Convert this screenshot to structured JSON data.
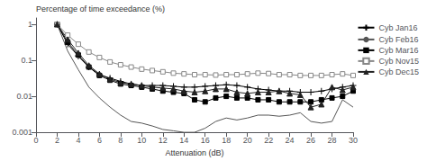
{
  "chart_data": {
    "type": "line",
    "xlabel": "Attenuation (dB)",
    "ylabel": "Percentage of time exceedance (%)",
    "x": [
      2,
      3,
      4,
      5,
      6,
      7,
      8,
      9,
      10,
      11,
      12,
      13,
      14,
      15,
      16,
      17,
      18,
      19,
      20,
      21,
      22,
      23,
      24,
      25,
      26,
      27,
      28,
      29,
      30
    ],
    "series": [
      {
        "name": "Cyb Jan16",
        "color": "#000000",
        "marker": "plus",
        "line_style": "solid",
        "values": [
          1.0,
          0.28,
          0.13,
          0.065,
          0.04,
          0.032,
          0.026,
          0.022,
          0.02,
          0.02,
          0.02,
          0.019,
          0.018,
          0.018,
          0.019,
          0.02,
          0.021,
          0.02,
          0.018,
          0.016,
          0.015,
          0.014,
          0.014,
          0.013,
          0.013,
          0.014,
          0.016,
          0.018,
          0.02
        ]
      },
      {
        "name": "Cyb Feb16",
        "color": "#555555",
        "marker": "none",
        "line_style": "solid",
        "values": [
          1.0,
          0.18,
          0.055,
          0.018,
          0.009,
          0.005,
          0.003,
          0.002,
          0.0018,
          0.0015,
          0.0012,
          0.0011,
          0.001,
          0.001,
          0.0013,
          0.002,
          0.0025,
          0.0022,
          0.0025,
          0.003,
          0.003,
          0.0028,
          0.003,
          0.0035,
          0.002,
          0.0018,
          0.002,
          0.008,
          0.005
        ]
      },
      {
        "name": "Cyb Mar16",
        "color": "#000000",
        "marker": "square",
        "line_style": "solid",
        "values": [
          1.0,
          0.32,
          0.14,
          0.065,
          0.038,
          0.028,
          0.022,
          0.02,
          0.018,
          0.016,
          0.014,
          0.013,
          0.012,
          0.008,
          0.007,
          0.009,
          0.01,
          0.009,
          0.009,
          0.008,
          0.008,
          0.007,
          0.007,
          0.007,
          0.007,
          0.008,
          0.009,
          0.01,
          0.014
        ]
      },
      {
        "name": "Cyb Nov15",
        "color": "#888888",
        "marker": "open_square",
        "line_style": "solid",
        "values": [
          1.0,
          0.5,
          0.28,
          0.17,
          0.12,
          0.09,
          0.075,
          0.065,
          0.057,
          0.052,
          0.048,
          0.044,
          0.042,
          0.04,
          0.04,
          0.039,
          0.04,
          0.04,
          0.042,
          0.044,
          0.043,
          0.04,
          0.04,
          0.038,
          0.038,
          0.038,
          0.04,
          0.042,
          0.038
        ]
      },
      {
        "name": "Cyb Dec15",
        "color": "#222222",
        "marker": "triangle",
        "line_style": "solid",
        "values": [
          1.0,
          0.38,
          0.16,
          0.072,
          0.042,
          0.03,
          0.024,
          0.022,
          0.02,
          0.018,
          0.017,
          0.016,
          0.014,
          0.013,
          0.014,
          0.016,
          0.016,
          0.013,
          0.012,
          0.013,
          0.013,
          0.014,
          0.012,
          0.011,
          0.005,
          0.006,
          0.018,
          0.015,
          0.018
        ]
      }
    ],
    "xlim": [
      0,
      30
    ],
    "xticks": [
      0,
      2,
      4,
      6,
      8,
      10,
      12,
      14,
      16,
      18,
      20,
      22,
      24,
      26,
      28,
      30
    ],
    "ylim": [
      0.001,
      1.5
    ],
    "yticks": [
      0.001,
      0.01,
      0.1,
      1
    ],
    "log": "y",
    "grid": false,
    "legend": "upper right"
  }
}
